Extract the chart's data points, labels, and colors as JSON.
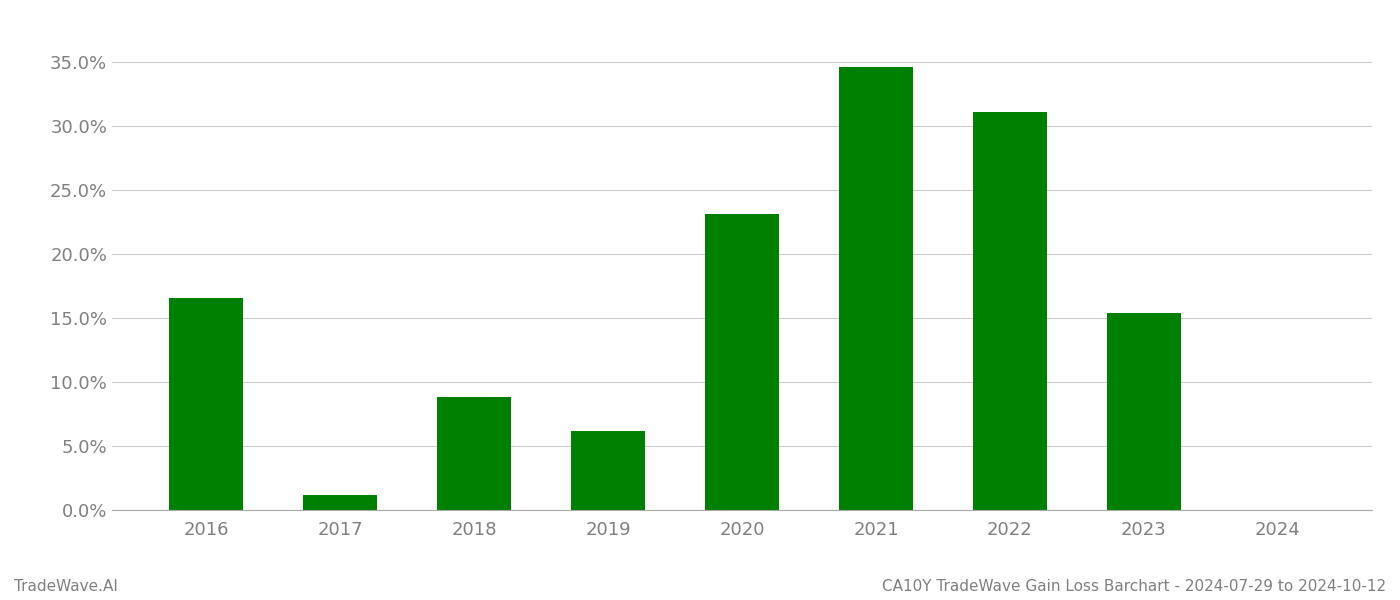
{
  "categories": [
    "2016",
    "2017",
    "2018",
    "2019",
    "2020",
    "2021",
    "2022",
    "2023",
    "2024"
  ],
  "values": [
    0.166,
    0.012,
    0.088,
    0.062,
    0.231,
    0.346,
    0.311,
    0.154,
    0.0
  ],
  "bar_color": "#008000",
  "bg_color": "#ffffff",
  "grid_color": "#cccccc",
  "ylabel_color": "#808080",
  "xlabel_color": "#808080",
  "footer_left": "TradeWave.AI",
  "footer_right": "CA10Y TradeWave Gain Loss Barchart - 2024-07-29 to 2024-10-12",
  "footer_color": "#808080",
  "footer_fontsize": 11,
  "tick_fontsize": 13,
  "ylim_max": 0.375,
  "bar_width": 0.55
}
